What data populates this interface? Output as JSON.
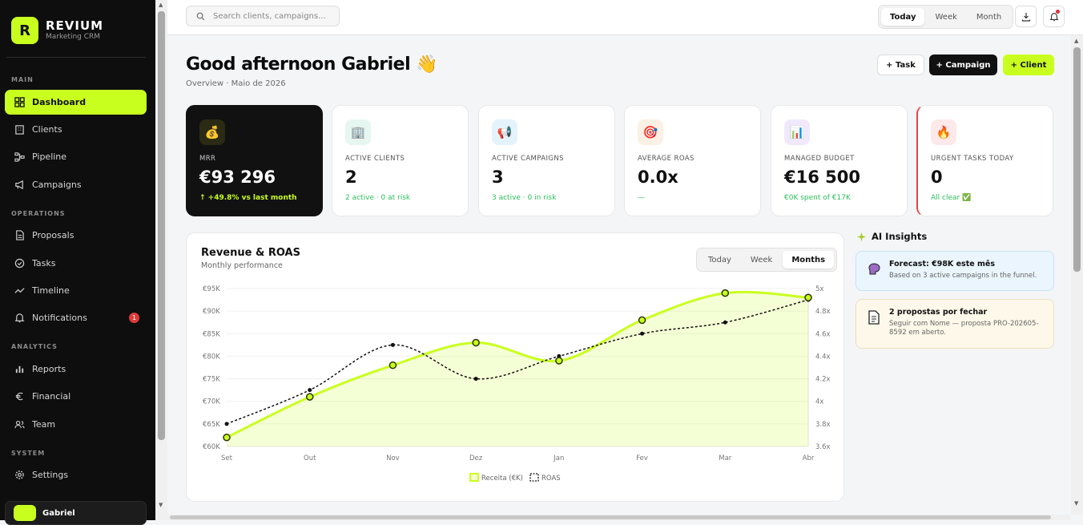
{
  "brand": {
    "name": "REVIUM",
    "subtitle": "Marketing CRM",
    "logo_letter": "R",
    "accent": "#c9ff1e"
  },
  "sidebar": {
    "sections": {
      "main": "MAIN",
      "operations": "OPERATIONS",
      "analytics": "ANALYTICS",
      "system": "SYSTEM"
    },
    "items": [
      {
        "label": "Dashboard",
        "icon": "grid-icon",
        "active": true
      },
      {
        "label": "Clients",
        "icon": "building-icon"
      },
      {
        "label": "Pipeline",
        "icon": "pipeline-icon"
      },
      {
        "label": "Campaigns",
        "icon": "megaphone-icon"
      },
      {
        "label": "Proposals",
        "icon": "document-icon"
      },
      {
        "label": "Tasks",
        "icon": "check-circle-icon"
      },
      {
        "label": "Timeline",
        "icon": "activity-icon"
      },
      {
        "label": "Notifications",
        "icon": "bell-icon",
        "badge": "1"
      },
      {
        "label": "Reports",
        "icon": "bar-chart-icon"
      },
      {
        "label": "Financial",
        "icon": "euro-icon"
      },
      {
        "label": "Team",
        "icon": "users-icon"
      },
      {
        "label": "Settings",
        "icon": "gear-icon"
      }
    ],
    "user": {
      "name": "Gabriel"
    }
  },
  "topbar": {
    "search_placeholder": "Search clients, campaigns...",
    "periods": [
      "Today",
      "Week",
      "Month"
    ],
    "selected_period": "Today"
  },
  "header": {
    "greeting": "Good afternoon Gabriel 👋",
    "breadcrumb": "Overview · Maio de 2026",
    "buttons": {
      "task": "+ Task",
      "campaign": "+ Campaign",
      "client": "+ Client"
    }
  },
  "kpis": [
    {
      "label": "MRR",
      "value": "€93 296",
      "sub": "↑ +49.8% vs last month",
      "icon": "money-bag-icon",
      "emoji": "💰"
    },
    {
      "label": "ACTIVE CLIENTS",
      "value": "2",
      "sub": "2 active · 0 at risk",
      "icon": "building-icon",
      "emoji": "🏢"
    },
    {
      "label": "ACTIVE CAMPAIGNS",
      "value": "3",
      "sub": "3 active · 0 in risk",
      "icon": "megaphone-icon",
      "emoji": "📢"
    },
    {
      "label": "AVERAGE ROAS",
      "value": "0.0x",
      "sub": "—",
      "icon": "target-icon",
      "emoji": "🎯"
    },
    {
      "label": "MANAGED BUDGET",
      "value": "€16 500",
      "sub": "€0K spent of €17K",
      "icon": "chart-icon",
      "emoji": "📊"
    },
    {
      "label": "URGENT TASKS TODAY",
      "value": "0",
      "sub": "All clear ✅",
      "icon": "fire-icon",
      "emoji": "🔥"
    }
  ],
  "revenue_card": {
    "title": "Revenue & ROAS",
    "subtitle": "Monthly performance",
    "tabs": [
      "Today",
      "Week",
      "Months"
    ],
    "selected_tab": "Months"
  },
  "chart_data": {
    "type": "line",
    "x": [
      "Set",
      "Out",
      "Nov",
      "Dez",
      "Jan",
      "Fev",
      "Mar",
      "Abr"
    ],
    "series": [
      {
        "name": "Receita (€K)",
        "axis": "left",
        "values": [
          62,
          71,
          78,
          83,
          79,
          88,
          94,
          93
        ],
        "color": "#c9ff1e",
        "style": "area-solid"
      },
      {
        "name": "ROAS",
        "axis": "right",
        "values": [
          3.8,
          4.1,
          4.5,
          4.2,
          4.4,
          4.6,
          4.7,
          4.9
        ],
        "color": "#111111",
        "style": "dashed"
      }
    ],
    "y_left": {
      "ticks": [
        "€60K",
        "€65K",
        "€70K",
        "€75K",
        "€80K",
        "€85K",
        "€90K",
        "€95K"
      ],
      "lim": [
        60,
        95
      ]
    },
    "y_right": {
      "ticks": [
        "3.6x",
        "3.8x",
        "4x",
        "4.2x",
        "4.4x",
        "4.6x",
        "4.8x",
        "5x"
      ],
      "lim": [
        3.6,
        5.0
      ]
    },
    "legend": "bottom",
    "grid": true
  },
  "ai_insights": {
    "title": "AI Insights",
    "items": [
      {
        "title": "Forecast: €98K este mês",
        "body": "Based on 3 active campaigns in the funnel.",
        "icon": "brain-icon"
      },
      {
        "title": "2 propostas por fechar",
        "body": "Seguir com Nome — proposta PRO-202605-8592 em aberto.",
        "icon": "document-icon"
      }
    ]
  }
}
